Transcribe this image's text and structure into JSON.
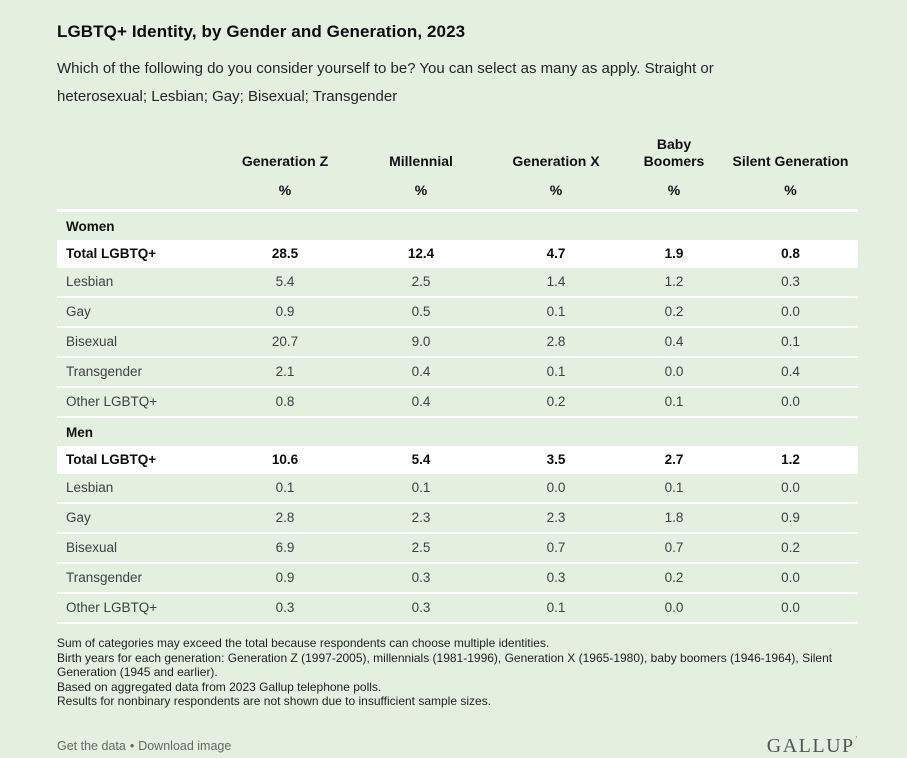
{
  "page": {
    "title": "LGBTQ+ Identity, by Gender and Generation, 2023",
    "subtitle": "Which of the following do you consider yourself to be? You can select as many as apply. Straight or heterosexual; Lesbian; Gay; Bisexual; Transgender"
  },
  "chart_data": {
    "type": "table",
    "columns": [
      "Generation Z",
      "Millennial",
      "Generation X",
      "Baby Boomers",
      "Silent Generation"
    ],
    "percent_symbol": "%",
    "sections": [
      {
        "label": "Women",
        "rows": [
          {
            "label": "Total LGBTQ+",
            "emphasis": true,
            "values": [
              "28.5",
              "12.4",
              "4.7",
              "1.9",
              "0.8"
            ]
          },
          {
            "label": "Lesbian",
            "values": [
              "5.4",
              "2.5",
              "1.4",
              "1.2",
              "0.3"
            ]
          },
          {
            "label": "Gay",
            "values": [
              "0.9",
              "0.5",
              "0.1",
              "0.2",
              "0.0"
            ]
          },
          {
            "label": "Bisexual",
            "values": [
              "20.7",
              "9.0",
              "2.8",
              "0.4",
              "0.1"
            ]
          },
          {
            "label": "Transgender",
            "values": [
              "2.1",
              "0.4",
              "0.1",
              "0.0",
              "0.4"
            ]
          },
          {
            "label": "Other LGBTQ+",
            "values": [
              "0.8",
              "0.4",
              "0.2",
              "0.1",
              "0.0"
            ]
          }
        ]
      },
      {
        "label": "Men",
        "rows": [
          {
            "label": "Total LGBTQ+",
            "emphasis": true,
            "values": [
              "10.6",
              "5.4",
              "3.5",
              "2.7",
              "1.2"
            ]
          },
          {
            "label": "Lesbian",
            "values": [
              "0.1",
              "0.1",
              "0.0",
              "0.1",
              "0.0"
            ]
          },
          {
            "label": "Gay",
            "values": [
              "2.8",
              "2.3",
              "2.3",
              "1.8",
              "0.9"
            ]
          },
          {
            "label": "Bisexual",
            "values": [
              "6.9",
              "2.5",
              "0.7",
              "0.7",
              "0.2"
            ]
          },
          {
            "label": "Transgender",
            "values": [
              "0.9",
              "0.3",
              "0.3",
              "0.2",
              "0.0"
            ]
          },
          {
            "label": "Other LGBTQ+",
            "values": [
              "0.3",
              "0.3",
              "0.1",
              "0.0",
              "0.0"
            ]
          }
        ]
      }
    ]
  },
  "footnotes": [
    "Sum of categories may exceed the total because respondents can choose multiple identities.",
    "Birth years for each generation: Generation Z (1997-2005), millennials (1981-1996), Generation X (1965-1980), baby boomers (1946-1964), Silent Generation (1945 and earlier).",
    "Based on aggregated data from 2023 Gallup telephone polls.",
    "Results for nonbinary respondents are not shown due to insufficient sample sizes."
  ],
  "footer": {
    "link_get_data": "Get the data",
    "separator": "•",
    "link_download": "Download image",
    "logo": "GALLUP",
    "logo_mark": "’"
  },
  "colors": {
    "background": "#e3f0e0",
    "highlight_row": "#ffffff",
    "title_text": "#0d0d0d",
    "body_text": "#3d4140",
    "footer_link": "#5f6b61",
    "logo": "#4e564f"
  }
}
